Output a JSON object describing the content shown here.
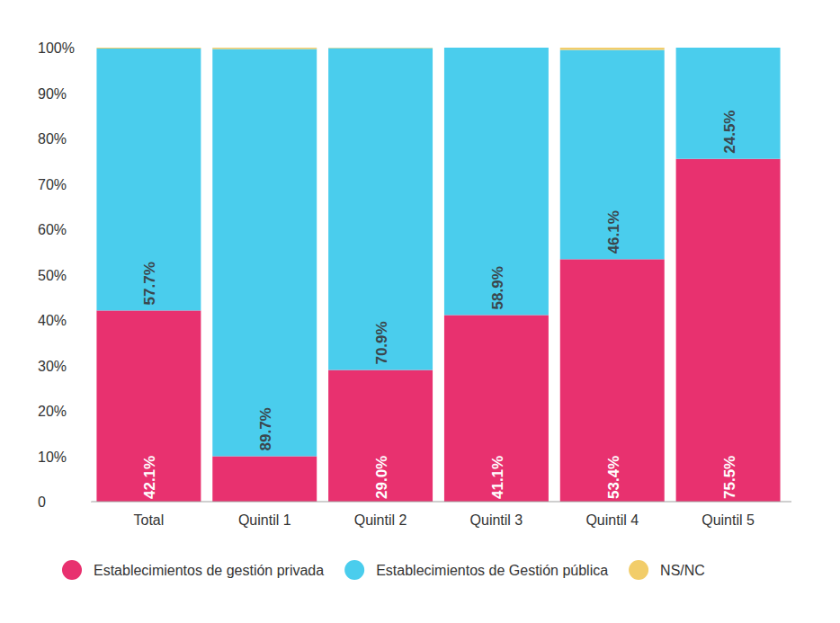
{
  "chart_data": {
    "type": "bar",
    "stacked": true,
    "grid": false,
    "legend": "bottom",
    "data_labels": true,
    "categories": [
      "Total",
      "Quintil 1",
      "Quintil 2",
      "Quintil 3",
      "Quintil 4",
      "Quintil 5"
    ],
    "ylim": [
      0,
      100
    ],
    "yticks": [
      0,
      {
        "value": 10,
        "label": "10%"
      },
      {
        "value": 20,
        "label": "20%"
      },
      {
        "value": 30,
        "label": "30%"
      },
      {
        "value": 40,
        "label": "40%"
      },
      {
        "value": 50,
        "label": "50%"
      },
      {
        "value": 60,
        "label": "60%"
      },
      {
        "value": 70,
        "label": "70%"
      },
      {
        "value": 80,
        "label": "80%"
      },
      {
        "value": 90,
        "label": "90%"
      },
      {
        "value": 100,
        "label": "100%"
      }
    ],
    "series": [
      {
        "name": "Establecimientos de gestión privada",
        "color": "#e8316f",
        "values": [
          42.1,
          10.0,
          29.0,
          41.1,
          53.4,
          75.5
        ],
        "value_labels": [
          "42.1%",
          null,
          "29.0%",
          "41.1%",
          "53.4%",
          "75.5%"
        ]
      },
      {
        "name": "Establecimientos de Gestión pública",
        "color": "#4acded",
        "values": [
          57.7,
          89.7,
          70.9,
          58.9,
          46.1,
          24.5
        ],
        "value_labels": [
          "57.7%",
          "89.7%",
          "70.9%",
          "58.9%",
          "46.1%",
          "24.5%"
        ]
      },
      {
        "name": "NS/NC",
        "color": "#f2cd6a",
        "values": [
          0.2,
          0.3,
          0.1,
          0.0,
          0.5,
          0.0
        ]
      }
    ]
  }
}
